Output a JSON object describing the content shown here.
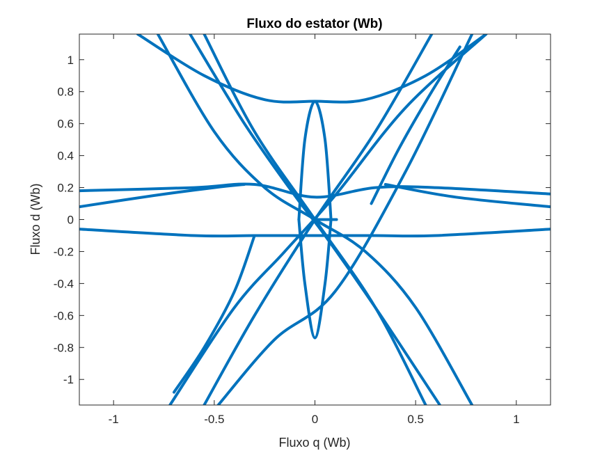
{
  "chart_data": {
    "type": "line",
    "title": "Fluxo do estator (Wb)",
    "xlabel": "Fluxo q (Wb)",
    "ylabel": "Fluxo d (Wb)",
    "xlim": [
      -1.17,
      1.17
    ],
    "ylim": [
      -1.16,
      1.16
    ],
    "xticks": [
      -1,
      -0.5,
      0,
      0.5,
      1
    ],
    "xtick_labels": [
      "-1",
      "-0.5",
      "0",
      "0.5",
      "1"
    ],
    "yticks": [
      1,
      0.8,
      0.6,
      0.4,
      0.2,
      0,
      -0.2,
      -0.4,
      -0.6,
      -0.8,
      -1
    ],
    "ytick_labels": [
      "1",
      "0.8",
      "0.6",
      "0.4",
      "0.2",
      "0",
      "-0.2",
      "-0.4",
      "-0.6",
      "-0.8",
      "-1"
    ],
    "grid": false,
    "color": "#0072BD",
    "series": [
      {
        "x": [
          -0.88,
          -0.55,
          -0.25,
          0.0,
          0.25,
          0.55,
          0.85
        ],
        "y": [
          1.16,
          0.9,
          0.75,
          0.74,
          0.75,
          0.9,
          1.16
        ]
      },
      {
        "x": [
          -0.78,
          -0.5,
          -0.25,
          0.0,
          0.25,
          0.5,
          0.78
        ],
        "y": [
          1.16,
          0.55,
          0.2,
          0.0,
          -0.2,
          -0.55,
          -1.16
        ]
      },
      {
        "x": [
          -0.55,
          -0.3,
          0.0,
          0.3,
          0.55
        ],
        "y": [
          1.16,
          0.55,
          0.0,
          -0.55,
          -1.16
        ]
      },
      {
        "x": [
          -0.62,
          -0.35,
          -0.1,
          0.05,
          0.3,
          0.62
        ],
        "y": [
          1.16,
          0.6,
          0.15,
          -0.1,
          -0.55,
          -1.16
        ]
      },
      {
        "x": [
          -0.55,
          -0.3,
          0.0,
          0.3,
          0.58
        ],
        "y": [
          -1.16,
          -0.6,
          -0.0,
          0.55,
          1.16
        ]
      },
      {
        "x": [
          -0.48,
          -0.2,
          0.1,
          0.45,
          0.78
        ],
        "y": [
          -1.16,
          -0.75,
          -0.45,
          0.3,
          1.16
        ]
      },
      {
        "x": [
          -0.72,
          -0.4,
          -0.15,
          0.1,
          0.45,
          0.85
        ],
        "y": [
          -1.16,
          -0.55,
          -0.2,
          0.15,
          0.7,
          1.16
        ]
      },
      {
        "x": [
          -1.17,
          -0.6,
          -0.3,
          0.0,
          0.3,
          0.6,
          1.17
        ],
        "y": [
          -0.06,
          -0.1,
          -0.1,
          -0.1,
          -0.1,
          -0.1,
          -0.06
        ]
      },
      {
        "x": [
          -1.17,
          -0.6,
          -0.3,
          0.0,
          0.3,
          0.6,
          1.17
        ],
        "y": [
          0.18,
          0.2,
          0.22,
          0.14,
          0.2,
          0.2,
          0.16
        ]
      },
      {
        "x": [
          -1.17,
          -0.8,
          -0.5,
          -0.35
        ],
        "y": [
          0.08,
          0.15,
          0.2,
          0.22
        ]
      },
      {
        "x": [
          0.35,
          0.7,
          1.17
        ],
        "y": [
          0.22,
          0.14,
          0.08
        ]
      },
      {
        "x": [
          -0.7,
          -0.55,
          -0.4,
          -0.3
        ],
        "y": [
          -1.08,
          -0.8,
          -0.45,
          -0.1
        ]
      },
      {
        "x": [
          0.28,
          0.42,
          0.58,
          0.72
        ],
        "y": [
          0.1,
          0.45,
          0.8,
          1.08
        ]
      },
      {
        "x": [
          -0.08,
          -0.05,
          0.0,
          0.05,
          0.08
        ],
        "y": [
          0.0,
          0.5,
          0.74,
          0.5,
          0.0
        ]
      },
      {
        "x": [
          -0.08,
          -0.05,
          0.0,
          0.05,
          0.08
        ],
        "y": [
          0.0,
          -0.4,
          -0.74,
          -0.4,
          0.0
        ]
      },
      {
        "x": [
          0.0,
          0.1,
          0.1
        ],
        "y": [
          0.0,
          0.0,
          0.0
        ]
      }
    ]
  }
}
